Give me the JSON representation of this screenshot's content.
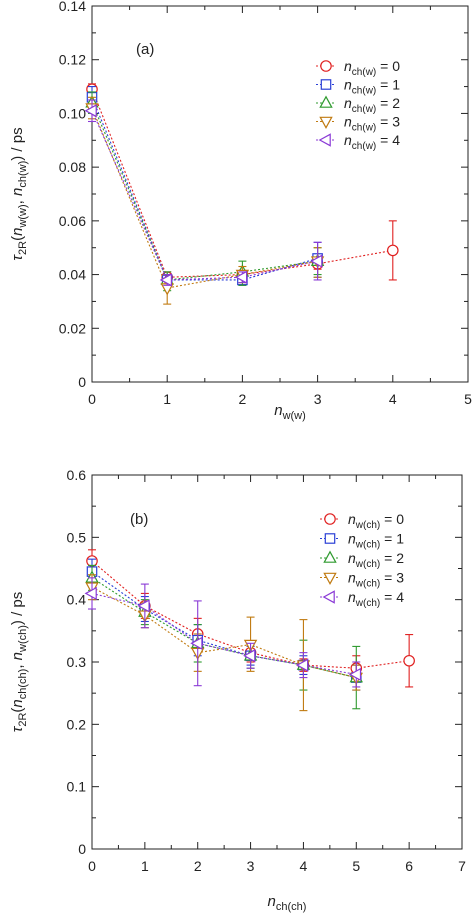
{
  "chart_data": [
    {
      "type": "scatter",
      "panel_label": "(a)",
      "xlabel": {
        "main": "n",
        "sub": "w(w)"
      },
      "ylabel": {
        "pre": "τ",
        "sub1": "2R",
        "mid1": "(n",
        "sub2": "w(w)",
        "mid2": ", n",
        "sub3": "ch(w)",
        "post": ") / ps"
      },
      "xlim": [
        0,
        5
      ],
      "ylim": [
        0,
        0.14
      ],
      "xticks": [
        "0",
        "1",
        "2",
        "3",
        "4",
        "5"
      ],
      "yticks": [
        "0",
        "0.02",
        "0.04",
        "0.06",
        "0.08",
        "0.10",
        "0.12",
        "0.14"
      ],
      "legend_position": "top-right",
      "series": [
        {
          "name": {
            "main": "n",
            "sub": "ch(w)",
            "eq": " = 0"
          },
          "color": "#e02020",
          "marker": "circle",
          "points": [
            [
              0,
              0.109,
              0.104,
              0.111
            ],
            [
              1,
              0.039,
              0.037,
              0.041
            ],
            [
              2,
              0.04,
              0.039,
              0.041
            ],
            [
              3,
              0.044,
              0.042,
              0.046
            ],
            [
              4,
              0.049,
              0.038,
              0.06
            ]
          ]
        },
        {
          "name": {
            "main": "n",
            "sub": "ch(w)",
            "eq": " = 1"
          },
          "color": "#2a3fd6",
          "marker": "square",
          "points": [
            [
              0,
              0.106,
              0.102,
              0.11
            ],
            [
              1,
              0.038,
              0.036,
              0.04
            ],
            [
              2,
              0.038,
              0.036,
              0.04
            ],
            [
              3,
              0.046,
              0.039,
              0.052
            ]
          ]
        },
        {
          "name": {
            "main": "n",
            "sub": "ch(w)",
            "eq": " = 2"
          },
          "color": "#2e9a2e",
          "marker": "triangle-up",
          "points": [
            [
              0,
              0.104,
              0.1,
              0.108
            ],
            [
              1,
              0.038,
              0.034,
              0.041
            ],
            [
              2,
              0.041,
              0.036,
              0.045
            ],
            [
              3,
              0.045,
              0.04,
              0.05
            ]
          ]
        },
        {
          "name": {
            "main": "n",
            "sub": "ch(w)",
            "eq": " = 3"
          },
          "color": "#c07a10",
          "marker": "triangle-down",
          "points": [
            [
              0,
              0.102,
              0.098,
              0.106
            ],
            [
              1,
              0.035,
              0.029,
              0.04
            ],
            [
              2,
              0.04,
              0.037,
              0.043
            ],
            [
              3,
              0.045,
              0.039,
              0.05
            ]
          ]
        },
        {
          "name": {
            "main": "n",
            "sub": "ch(w)",
            "eq": " = 4"
          },
          "color": "#8a3ad6",
          "marker": "triangle-left",
          "points": [
            [
              0,
              0.101,
              0.097,
              0.105
            ],
            [
              1,
              0.038,
              0.036,
              0.04
            ],
            [
              2,
              0.039,
              0.037,
              0.041
            ],
            [
              3,
              0.045,
              0.038,
              0.052
            ]
          ]
        }
      ]
    },
    {
      "type": "scatter",
      "panel_label": "(b)",
      "xlabel": {
        "main": "n",
        "sub": "ch(ch)"
      },
      "ylabel": {
        "pre": "τ",
        "sub1": "2R",
        "mid1": "(n",
        "sub2": "ch(ch)",
        "mid2": ", n",
        "sub3": "w(ch)",
        "post": ") / ps"
      },
      "xlim": [
        0,
        7
      ],
      "ylim": [
        0,
        0.6
      ],
      "xticks": [
        "0",
        "1",
        "2",
        "3",
        "4",
        "5",
        "6",
        "7"
      ],
      "yticks": [
        "0",
        "0.1",
        "0.2",
        "0.3",
        "0.4",
        "0.5",
        "0.6"
      ],
      "legend_position": "top-right",
      "series": [
        {
          "name": {
            "main": "n",
            "sub": "w(ch)",
            "eq": " = 0"
          },
          "color": "#e02020",
          "marker": "circle",
          "points": [
            [
              0,
              0.462,
              0.44,
              0.48
            ],
            [
              1,
              0.39,
              0.37,
              0.41
            ],
            [
              2,
              0.345,
              0.32,
              0.37
            ],
            [
              3,
              0.315,
              0.3,
              0.33
            ],
            [
              4,
              0.295,
              0.285,
              0.305
            ],
            [
              5,
              0.29,
              0.27,
              0.31
            ],
            [
              6,
              0.302,
              0.26,
              0.344
            ]
          ]
        },
        {
          "name": {
            "main": "n",
            "sub": "w(ch)",
            "eq": " = 1"
          },
          "color": "#2a3fd6",
          "marker": "square",
          "points": [
            [
              0,
              0.445,
              0.425,
              0.465
            ],
            [
              1,
              0.385,
              0.365,
              0.405
            ],
            [
              2,
              0.335,
              0.31,
              0.36
            ],
            [
              3,
              0.31,
              0.295,
              0.325
            ],
            [
              4,
              0.295,
              0.28,
              0.31
            ],
            [
              5,
              0.275,
              0.255,
              0.295
            ]
          ]
        },
        {
          "name": {
            "main": "n",
            "sub": "w(ch)",
            "eq": " = 2"
          },
          "color": "#2e9a2e",
          "marker": "triangle-up",
          "points": [
            [
              0,
              0.435,
              0.415,
              0.455
            ],
            [
              1,
              0.38,
              0.36,
              0.4
            ],
            [
              2,
              0.33,
              0.3,
              0.36
            ],
            [
              3,
              0.31,
              0.29,
              0.33
            ],
            [
              4,
              0.295,
              0.255,
              0.335
            ],
            [
              5,
              0.275,
              0.225,
              0.325
            ]
          ]
        },
        {
          "name": {
            "main": "n",
            "sub": "w(ch)",
            "eq": " = 3"
          },
          "color": "#c07a10",
          "marker": "triangle-down",
          "points": [
            [
              0,
              0.42,
              0.4,
              0.44
            ],
            [
              1,
              0.375,
              0.355,
              0.395
            ],
            [
              2,
              0.315,
              0.285,
              0.345
            ],
            [
              3,
              0.328,
              0.285,
              0.372
            ],
            [
              4,
              0.295,
              0.222,
              0.368
            ],
            [
              5,
              0.275,
              0.255,
              0.295
            ]
          ]
        },
        {
          "name": {
            "main": "n",
            "sub": "w(ch)",
            "eq": " = 4"
          },
          "color": "#8a3ad6",
          "marker": "triangle-left",
          "points": [
            [
              0,
              0.41,
              0.385,
              0.435
            ],
            [
              1,
              0.39,
              0.355,
              0.425
            ],
            [
              2,
              0.33,
              0.262,
              0.398
            ],
            [
              3,
              0.31,
              0.29,
              0.33
            ],
            [
              4,
              0.295,
              0.275,
              0.315
            ],
            [
              5,
              0.28,
              0.26,
              0.3
            ]
          ]
        }
      ]
    }
  ]
}
